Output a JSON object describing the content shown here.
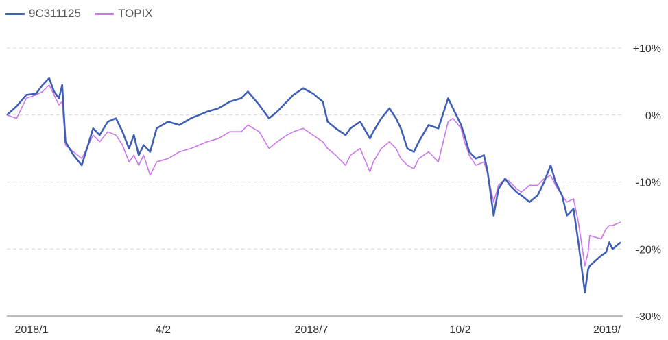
{
  "chart_data": {
    "type": "line",
    "title": "",
    "xlabel": "",
    "ylabel": "",
    "x_ticks": [
      "2018/1",
      "4/2",
      "2018/7",
      "10/2",
      "2019/"
    ],
    "ylim": [
      -30,
      10
    ],
    "y_ticks": [
      {
        "value": 10,
        "label": "+10%"
      },
      {
        "value": 0,
        "label": "0%"
      },
      {
        "value": -10,
        "label": "-10%"
      },
      {
        "value": -20,
        "label": "-20%"
      },
      {
        "value": -30,
        "label": "-30%"
      }
    ],
    "grid": true,
    "legend_position": "top-left",
    "x_range": [
      "2018-01-04",
      "2019-01-16"
    ],
    "series": [
      {
        "name": "9C311125",
        "color": "#3f5fb4",
        "points": [
          [
            "2018-01-04",
            0.0
          ],
          [
            "2018-01-10",
            1.3
          ],
          [
            "2018-01-16",
            3.0
          ],
          [
            "2018-01-22",
            3.2
          ],
          [
            "2018-01-26",
            4.5
          ],
          [
            "2018-01-30",
            5.5
          ],
          [
            "2018-02-02",
            3.5
          ],
          [
            "2018-02-05",
            2.5
          ],
          [
            "2018-02-07",
            4.5
          ],
          [
            "2018-02-09",
            -4.0
          ],
          [
            "2018-02-14",
            -6.0
          ],
          [
            "2018-02-19",
            -7.5
          ],
          [
            "2018-02-26",
            -2.0
          ],
          [
            "2018-03-02",
            -3.0
          ],
          [
            "2018-03-07",
            -1.0
          ],
          [
            "2018-03-12",
            -0.5
          ],
          [
            "2018-03-16",
            -2.5
          ],
          [
            "2018-03-20",
            -5.0
          ],
          [
            "2018-03-23",
            -3.0
          ],
          [
            "2018-03-26",
            -6.0
          ],
          [
            "2018-03-29",
            -4.5
          ],
          [
            "2018-04-02",
            -5.5
          ],
          [
            "2018-04-06",
            -2.0
          ],
          [
            "2018-04-13",
            -1.0
          ],
          [
            "2018-04-20",
            -1.5
          ],
          [
            "2018-04-27",
            -0.5
          ],
          [
            "2018-05-07",
            0.5
          ],
          [
            "2018-05-14",
            1.0
          ],
          [
            "2018-05-21",
            2.0
          ],
          [
            "2018-05-28",
            2.5
          ],
          [
            "2018-06-01",
            3.5
          ],
          [
            "2018-06-08",
            1.5
          ],
          [
            "2018-06-14",
            -0.5
          ],
          [
            "2018-06-19",
            0.5
          ],
          [
            "2018-06-25",
            2.0
          ],
          [
            "2018-06-29",
            3.0
          ],
          [
            "2018-07-05",
            4.0
          ],
          [
            "2018-07-11",
            3.2
          ],
          [
            "2018-07-17",
            2.0
          ],
          [
            "2018-07-20",
            -1.0
          ],
          [
            "2018-07-25",
            -2.0
          ],
          [
            "2018-07-31",
            -3.0
          ],
          [
            "2018-08-03",
            -2.0
          ],
          [
            "2018-08-09",
            -1.0
          ],
          [
            "2018-08-15",
            -3.5
          ],
          [
            "2018-08-17",
            -2.5
          ],
          [
            "2018-08-22",
            -0.5
          ],
          [
            "2018-08-27",
            1.0
          ],
          [
            "2018-08-31",
            -0.5
          ],
          [
            "2018-09-03",
            -2.0
          ],
          [
            "2018-09-07",
            -5.0
          ],
          [
            "2018-09-11",
            -5.5
          ],
          [
            "2018-09-14",
            -4.0
          ],
          [
            "2018-09-20",
            -1.5
          ],
          [
            "2018-09-26",
            -2.0
          ],
          [
            "2018-10-02",
            2.5
          ],
          [
            "2018-10-05",
            1.0
          ],
          [
            "2018-10-10",
            -1.5
          ],
          [
            "2018-10-12",
            -3.0
          ],
          [
            "2018-10-15",
            -5.5
          ],
          [
            "2018-10-19",
            -6.5
          ],
          [
            "2018-10-24",
            -6.0
          ],
          [
            "2018-10-26",
            -8.0
          ],
          [
            "2018-10-30",
            -15.0
          ],
          [
            "2018-11-02",
            -11.0
          ],
          [
            "2018-11-06",
            -9.5
          ],
          [
            "2018-11-09",
            -10.5
          ],
          [
            "2018-11-13",
            -11.5
          ],
          [
            "2018-11-16",
            -12.0
          ],
          [
            "2018-11-21",
            -13.0
          ],
          [
            "2018-11-26",
            -12.0
          ],
          [
            "2018-11-30",
            -10.0
          ],
          [
            "2018-12-04",
            -7.5
          ],
          [
            "2018-12-07",
            -10.0
          ],
          [
            "2018-12-11",
            -12.0
          ],
          [
            "2018-12-14",
            -15.0
          ],
          [
            "2018-12-18",
            -14.0
          ],
          [
            "2018-12-21",
            -19.0
          ],
          [
            "2018-12-25",
            -26.5
          ],
          [
            "2018-12-27",
            -23.0
          ],
          [
            "2018-12-28",
            -22.5
          ],
          [
            "2019-01-04",
            -21.0
          ],
          [
            "2019-01-07",
            -20.5
          ],
          [
            "2019-01-09",
            -19.0
          ],
          [
            "2019-01-11",
            -20.0
          ],
          [
            "2019-01-16",
            -19.0
          ]
        ]
      },
      {
        "name": "TOPIX",
        "color": "#cc77e8",
        "points": [
          [
            "2018-01-04",
            0.0
          ],
          [
            "2018-01-10",
            -0.5
          ],
          [
            "2018-01-16",
            2.5
          ],
          [
            "2018-01-22",
            3.0
          ],
          [
            "2018-01-26",
            3.5
          ],
          [
            "2018-01-30",
            4.5
          ],
          [
            "2018-02-02",
            3.0
          ],
          [
            "2018-02-05",
            1.5
          ],
          [
            "2018-02-07",
            2.0
          ],
          [
            "2018-02-09",
            -4.5
          ],
          [
            "2018-02-14",
            -5.5
          ],
          [
            "2018-02-19",
            -6.5
          ],
          [
            "2018-02-26",
            -3.0
          ],
          [
            "2018-03-02",
            -4.0
          ],
          [
            "2018-03-07",
            -2.5
          ],
          [
            "2018-03-12",
            -3.0
          ],
          [
            "2018-03-16",
            -4.5
          ],
          [
            "2018-03-20",
            -7.0
          ],
          [
            "2018-03-23",
            -6.0
          ],
          [
            "2018-03-26",
            -7.5
          ],
          [
            "2018-03-29",
            -6.0
          ],
          [
            "2018-04-02",
            -9.0
          ],
          [
            "2018-04-06",
            -7.0
          ],
          [
            "2018-04-13",
            -6.5
          ],
          [
            "2018-04-20",
            -5.5
          ],
          [
            "2018-04-27",
            -5.0
          ],
          [
            "2018-05-07",
            -4.0
          ],
          [
            "2018-05-14",
            -3.5
          ],
          [
            "2018-05-21",
            -2.5
          ],
          [
            "2018-05-28",
            -2.5
          ],
          [
            "2018-06-01",
            -1.5
          ],
          [
            "2018-06-08",
            -2.5
          ],
          [
            "2018-06-14",
            -5.0
          ],
          [
            "2018-06-19",
            -4.0
          ],
          [
            "2018-06-25",
            -3.0
          ],
          [
            "2018-06-29",
            -2.5
          ],
          [
            "2018-07-05",
            -2.0
          ],
          [
            "2018-07-11",
            -3.0
          ],
          [
            "2018-07-17",
            -4.0
          ],
          [
            "2018-07-20",
            -5.0
          ],
          [
            "2018-07-25",
            -6.0
          ],
          [
            "2018-07-31",
            -7.5
          ],
          [
            "2018-08-03",
            -6.0
          ],
          [
            "2018-08-09",
            -5.0
          ],
          [
            "2018-08-15",
            -8.5
          ],
          [
            "2018-08-17",
            -7.0
          ],
          [
            "2018-08-22",
            -5.0
          ],
          [
            "2018-08-27",
            -4.0
          ],
          [
            "2018-08-31",
            -5.0
          ],
          [
            "2018-09-03",
            -6.5
          ],
          [
            "2018-09-07",
            -7.5
          ],
          [
            "2018-09-11",
            -8.0
          ],
          [
            "2018-09-14",
            -6.5
          ],
          [
            "2018-09-20",
            -5.5
          ],
          [
            "2018-09-26",
            -7.0
          ],
          [
            "2018-10-02",
            -1.0
          ],
          [
            "2018-10-05",
            -0.5
          ],
          [
            "2018-10-10",
            -2.0
          ],
          [
            "2018-10-12",
            -4.0
          ],
          [
            "2018-10-15",
            -6.0
          ],
          [
            "2018-10-19",
            -7.5
          ],
          [
            "2018-10-24",
            -7.0
          ],
          [
            "2018-10-26",
            -8.5
          ],
          [
            "2018-10-30",
            -13.0
          ],
          [
            "2018-11-02",
            -10.5
          ],
          [
            "2018-11-06",
            -9.5
          ],
          [
            "2018-11-09",
            -10.0
          ],
          [
            "2018-11-13",
            -11.0
          ],
          [
            "2018-11-16",
            -11.5
          ],
          [
            "2018-11-21",
            -10.5
          ],
          [
            "2018-11-26",
            -10.5
          ],
          [
            "2018-11-30",
            -9.5
          ],
          [
            "2018-12-04",
            -9.0
          ],
          [
            "2018-12-07",
            -10.5
          ],
          [
            "2018-12-11",
            -12.0
          ],
          [
            "2018-12-14",
            -13.0
          ],
          [
            "2018-12-18",
            -12.5
          ],
          [
            "2018-12-21",
            -16.0
          ],
          [
            "2018-12-25",
            -22.5
          ],
          [
            "2018-12-27",
            -20.5
          ],
          [
            "2018-12-28",
            -18.0
          ],
          [
            "2019-01-04",
            -18.5
          ],
          [
            "2019-01-07",
            -17.0
          ],
          [
            "2019-01-09",
            -16.5
          ],
          [
            "2019-01-11",
            -16.5
          ],
          [
            "2019-01-16",
            -16.0
          ]
        ]
      }
    ]
  }
}
